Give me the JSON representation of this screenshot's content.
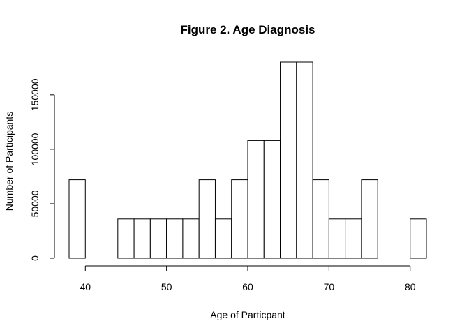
{
  "chart_data": {
    "type": "bar",
    "title": "Figure 2. Age Diagnosis",
    "xlabel": "Age of Particpant",
    "ylabel": "Number of Participants",
    "bin_edges": [
      38,
      40,
      42,
      44,
      46,
      48,
      50,
      52,
      54,
      56,
      58,
      60,
      62,
      64,
      66,
      68,
      70,
      72,
      74,
      76,
      78,
      80,
      82
    ],
    "values": [
      72000,
      0,
      0,
      36000,
      36000,
      36000,
      36000,
      36000,
      72000,
      36000,
      72000,
      108000,
      108000,
      180000,
      180000,
      72000,
      36000,
      36000,
      72000,
      0,
      0,
      36000
    ],
    "xlim": [
      38,
      82
    ],
    "ylim": [
      0,
      180000
    ],
    "x_ticks": [
      40,
      50,
      60,
      70,
      80
    ],
    "x_tick_labels": [
      "40",
      "50",
      "60",
      "70",
      "80"
    ],
    "y_ticks": [
      0,
      50000,
      100000,
      150000
    ],
    "y_tick_labels": [
      "0",
      "50000",
      "100000",
      "150000"
    ],
    "grid": false,
    "legend": "none",
    "colors": {
      "bar_fill": "#ffffff",
      "bar_stroke": "#000000"
    }
  }
}
